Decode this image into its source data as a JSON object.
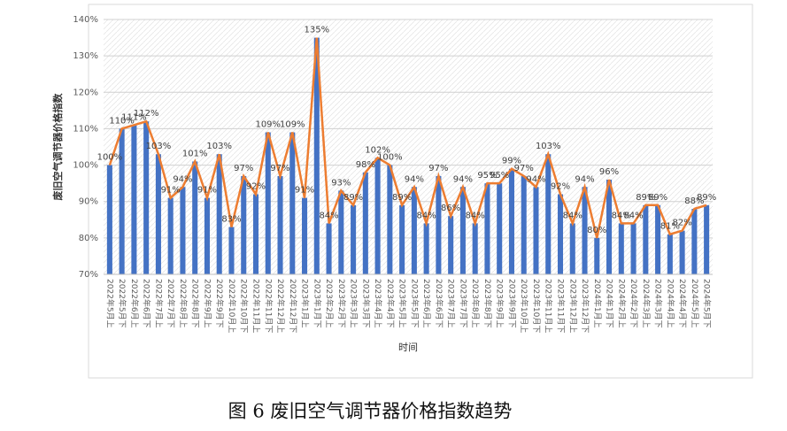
{
  "chart_data": {
    "type": "bar",
    "y_axis_label": "废旧空气调节器价格指数",
    "x_axis_label": "时间",
    "caption": "图 6 废旧空气调节器价格指数趋势",
    "categories": [
      "2022年5月上",
      "2022年5月下",
      "2022年6月上",
      "2022年6月下",
      "2022年7月上",
      "2022年7月下",
      "2022年8月上",
      "2022年8月下",
      "2022年9月上",
      "2022年9月下",
      "2022年10月上",
      "2022年10月下",
      "2022年11月上",
      "2022年11月下",
      "2022年12月上",
      "2022年12月下",
      "2023年1月上",
      "2023年1月下",
      "2023年2月上",
      "2023年2月下",
      "2023年3月上",
      "2023年3月下",
      "2023年4月上",
      "2023年4月下",
      "2023年5月上",
      "2023年5月下",
      "2023年6月上",
      "2023年6月下",
      "2023年7月上",
      "2023年7月下",
      "2023年8月上",
      "2023年8月下",
      "2023年9月上",
      "2023年9月下",
      "2023年10月上",
      "2023年10月下",
      "2023年11月上",
      "2023年11月下",
      "2023年12月上",
      "2023年12月下",
      "2024年1月上",
      "2024年1月下",
      "2024年2月上",
      "2024年2月下",
      "2024年3月上",
      "2024年3月下",
      "2024年4月上",
      "2024年4月下",
      "2024年5月上",
      "2024年5月下"
    ],
    "values": [
      100,
      110,
      111,
      112,
      103,
      91,
      94,
      101,
      91,
      103,
      83,
      97,
      92,
      109,
      97,
      109,
      91,
      135,
      84,
      93,
      89,
      98,
      102,
      100,
      89,
      94,
      84,
      97,
      86,
      94,
      84,
      95,
      95,
      99,
      97,
      94,
      103,
      92,
      84,
      94,
      80,
      96,
      84,
      84,
      89,
      89,
      81,
      82,
      88,
      89
    ],
    "value_labels": [
      "100%",
      "110%",
      "111%",
      "112%",
      "103%",
      "91%",
      "94%",
      "101%",
      "91%",
      "103%",
      "83%",
      "97%",
      "92%",
      "109%",
      "97%",
      "109%",
      "91%",
      "135%",
      "84%",
      "93%",
      "89%",
      "98%",
      "102%",
      "100%",
      "89%",
      "94%",
      "84%",
      "97%",
      "86%",
      "94%",
      "84%",
      "95%",
      "95%",
      "99%",
      "97%",
      "94%",
      "103%",
      "92%",
      "84%",
      "94%",
      "80%",
      "96%",
      "84%",
      "84%",
      "89%",
      "89%",
      "81%",
      "82%",
      "88%",
      "89%"
    ],
    "bar_color": "#4472c4",
    "line_color": "#ed7d31",
    "ylim": [
      70,
      140
    ],
    "yticks": [
      {
        "value": 70,
        "label": "70%"
      },
      {
        "value": 80,
        "label": "80%"
      },
      {
        "value": 90,
        "label": "90%"
      },
      {
        "value": 100,
        "label": "100%"
      },
      {
        "value": 110,
        "label": "110%"
      },
      {
        "value": 120,
        "label": "120%"
      },
      {
        "value": 130,
        "label": "130%"
      },
      {
        "value": 140,
        "label": "140%"
      }
    ],
    "grid": true
  }
}
